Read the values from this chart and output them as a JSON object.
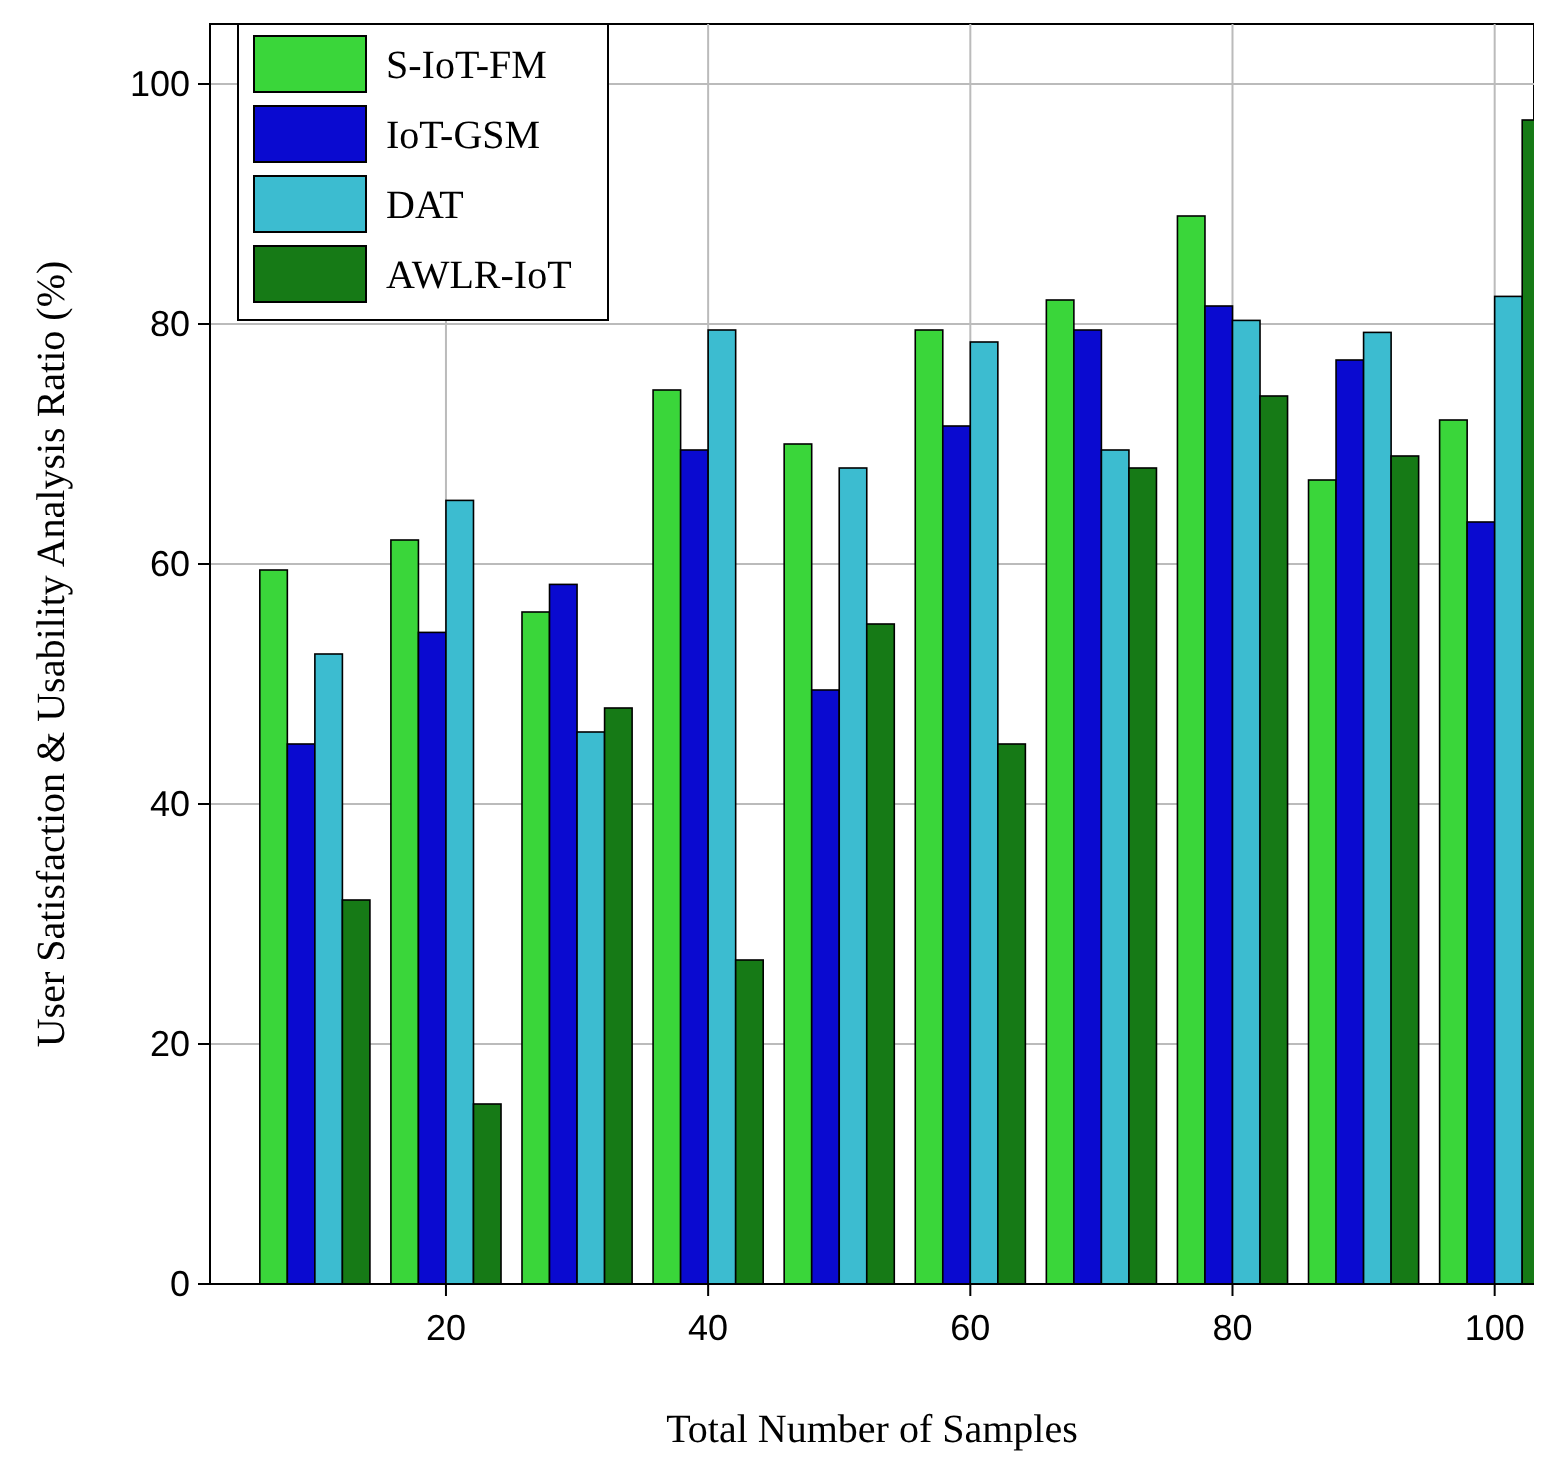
{
  "chart_data": {
    "type": "bar",
    "xlabel": "Total Number of Samples",
    "ylabel": "User Satisfaction & Usability Analysis Ratio (%)",
    "x": [
      10,
      20,
      30,
      40,
      50,
      60,
      70,
      80,
      90,
      100
    ],
    "series": [
      {
        "name": "S-IoT-FM",
        "color": "#3ad63a",
        "values": [
          59.5,
          62,
          56,
          74.5,
          70,
          79.5,
          82,
          89,
          67,
          72
        ]
      },
      {
        "name": "IoT-GSM",
        "color": "#0a0ad0",
        "values": [
          45,
          54.3,
          58.3,
          69.5,
          49.5,
          71.5,
          79.5,
          81.5,
          77,
          63.5
        ]
      },
      {
        "name": "DAT",
        "color": "#3cbcd0",
        "values": [
          52.5,
          65.3,
          46,
          79.5,
          68,
          78.5,
          69.5,
          80.3,
          79.3,
          82.3
        ]
      },
      {
        "name": "AWLR-IoT",
        "color": "#167a16",
        "values": [
          32,
          15,
          48,
          27,
          55,
          45,
          68,
          74,
          69,
          97
        ]
      }
    ],
    "xlim": [
      2,
      103
    ],
    "xticks": [
      20,
      40,
      60,
      80,
      100
    ],
    "ylim": [
      0,
      105
    ],
    "yticks": [
      0,
      20,
      40,
      60,
      80,
      100
    ],
    "grid": true,
    "legend": "top left"
  }
}
